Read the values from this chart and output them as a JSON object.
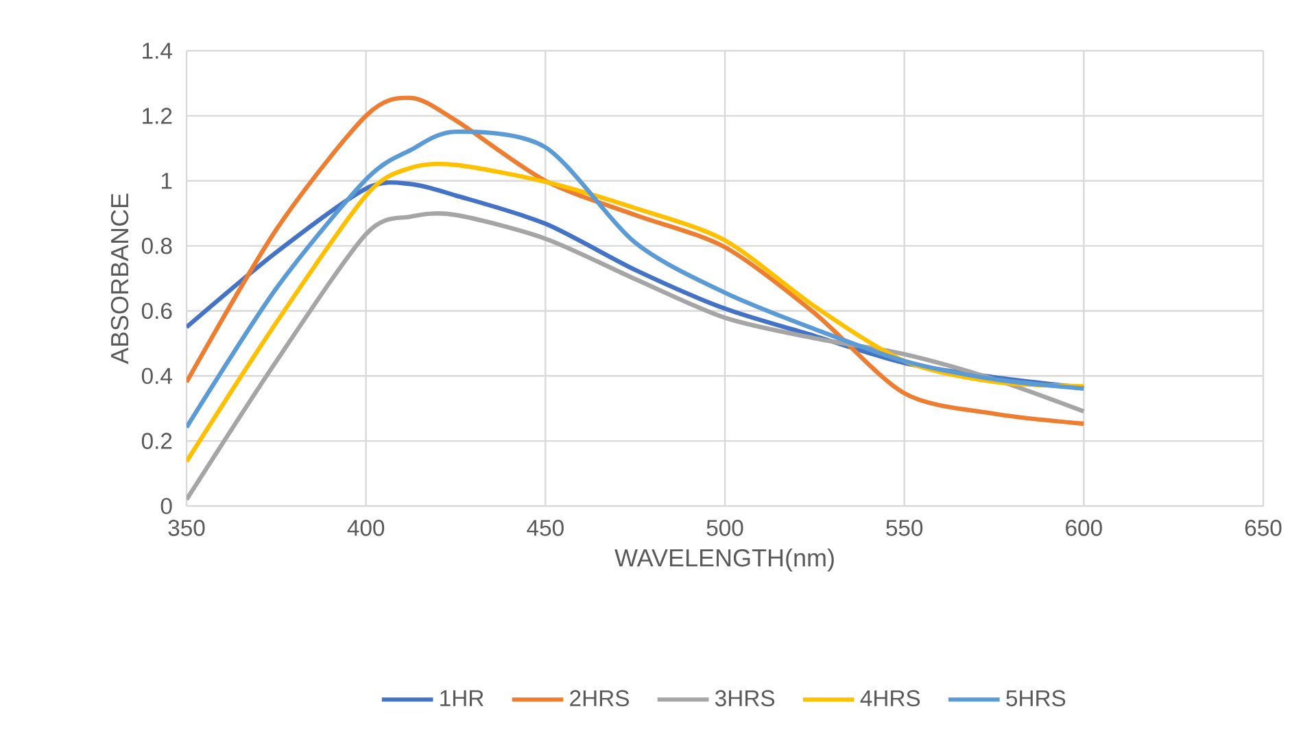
{
  "chart_data": {
    "type": "line",
    "xlabel": "WAVELENGTH(nm)",
    "ylabel": "ABSORBANCE",
    "xlim": [
      350,
      650
    ],
    "xticks": [
      350,
      400,
      450,
      500,
      550,
      600,
      650
    ],
    "ylim": [
      0,
      1.4
    ],
    "yticks": [
      0,
      {
        "value": 0.2,
        "label": "0.2"
      },
      {
        "value": 0.4,
        "label": "0.4"
      },
      {
        "value": 0.6,
        "label": "0.6"
      },
      {
        "value": 0.8,
        "label": "0.8"
      },
      1,
      {
        "value": 1.2,
        "label": "1.2"
      },
      {
        "value": 1.4,
        "label": "1.4"
      }
    ],
    "grid": true,
    "legend": "bottom",
    "marker": "none",
    "line_style": "solid",
    "series": [
      {
        "name": "1HR",
        "color": "#4472c4",
        "x": [
          350,
          375,
          400,
          412.5,
          425,
          450,
          475,
          500,
          525,
          550,
          575,
          600
        ],
        "values": [
          0.55,
          0.78,
          0.976,
          0.99,
          0.955,
          0.868,
          0.726,
          0.607,
          0.523,
          0.44,
          0.396,
          0.364
        ]
      },
      {
        "name": "2HRS",
        "color": "#ed7d31",
        "x": [
          350,
          375,
          400,
          412.5,
          425,
          450,
          475,
          500,
          525,
          550,
          575,
          600
        ],
        "values": [
          0.381,
          0.85,
          1.2,
          1.255,
          1.186,
          1.0,
          0.895,
          0.796,
          0.593,
          0.347,
          0.284,
          0.253
        ]
      },
      {
        "name": "3HRS",
        "color": "#a5a5a5",
        "x": [
          350,
          375,
          400,
          412.5,
          425,
          450,
          475,
          500,
          525,
          550,
          575,
          600
        ],
        "values": [
          0.02,
          0.445,
          0.836,
          0.89,
          0.895,
          0.822,
          0.698,
          0.579,
          0.516,
          0.467,
          0.39,
          0.291
        ]
      },
      {
        "name": "4HRS",
        "color": "#ffc000",
        "x": [
          350,
          375,
          400,
          412.5,
          425,
          450,
          475,
          500,
          525,
          550,
          575,
          600
        ],
        "values": [
          0.137,
          0.564,
          0.955,
          1.04,
          1.049,
          0.997,
          0.916,
          0.817,
          0.614,
          0.446,
          0.382,
          0.368
        ]
      },
      {
        "name": "5HRS",
        "color": "#5b9bd5",
        "x": [
          350,
          375,
          400,
          412.5,
          425,
          450,
          475,
          500,
          525,
          550,
          575,
          600
        ],
        "values": [
          0.242,
          0.669,
          1.004,
          1.095,
          1.151,
          1.103,
          0.81,
          0.656,
          0.544,
          0.446,
          0.39,
          0.361
        ]
      }
    ]
  }
}
